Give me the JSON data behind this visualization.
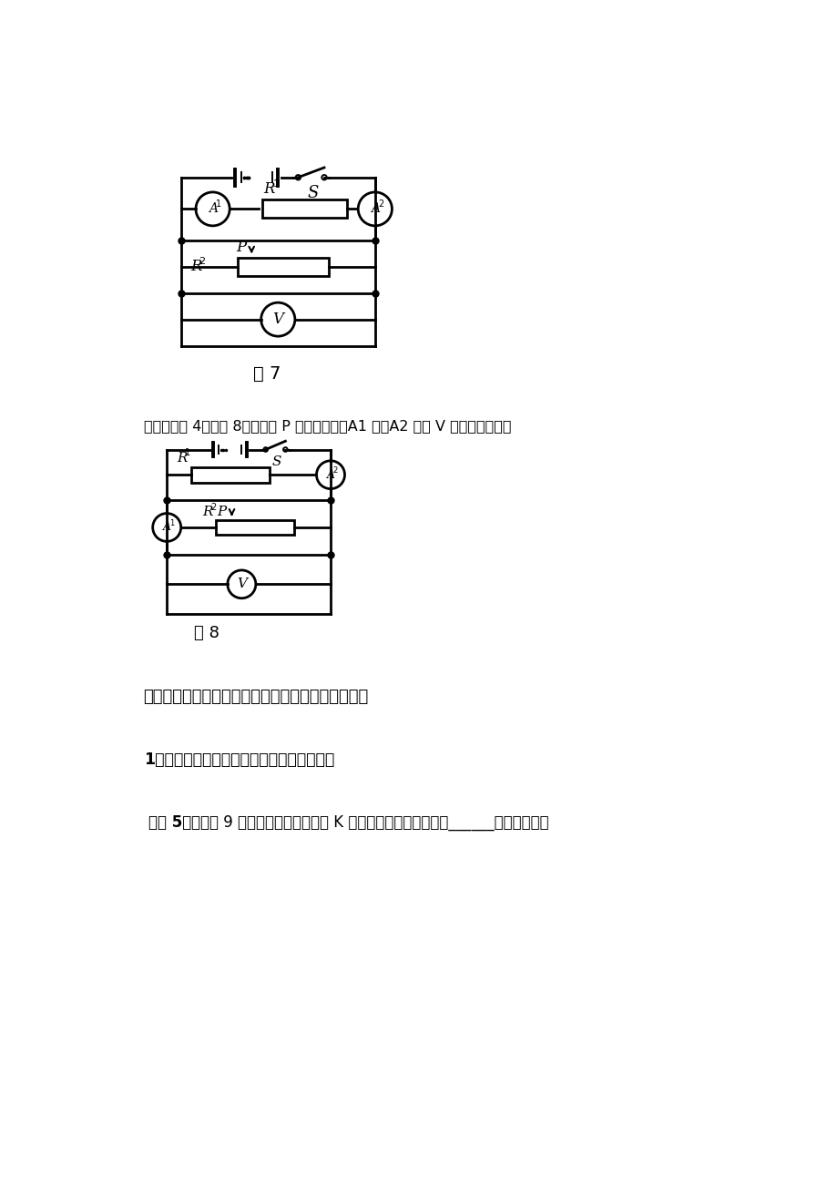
{
  "bg_color": "#ffffff",
  "page_width": 9.2,
  "page_height": 13.02,
  "fig7_label": "图 7",
  "fig8_label": "图 8",
  "text_bianshi": "【变式训组 4】如图 8，当滑片 P 向右移动时，A1 表、A2 表和 V 表将如何变化？",
  "text_section2": "二、电键的断开或闭合引起电路中电学物理量的变化",
  "text_sub1": "1．串联电路中电键的断开或闭合引起的变化",
  "text_example5_bold": "【例 5】",
  "text_example5_rest": "在如图 9 所示的电路中，将电键 K 闭合，则安培表的示数将______，伏特表的示"
}
